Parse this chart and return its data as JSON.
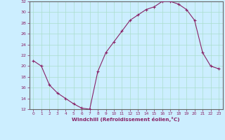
{
  "x": [
    0,
    1,
    2,
    3,
    4,
    5,
    6,
    7,
    8,
    9,
    10,
    11,
    12,
    13,
    14,
    15,
    16,
    17,
    18,
    19,
    20,
    21,
    22,
    23
  ],
  "y": [
    21,
    20,
    16.5,
    15,
    14,
    13,
    12.2,
    12,
    19,
    22.5,
    24.5,
    26.5,
    28.5,
    29.5,
    30.5,
    31,
    32,
    32,
    31.5,
    30.5,
    28.5,
    22.5,
    20,
    19.5
  ],
  "line_color": "#882266",
  "marker": "+",
  "marker_color": "#882266",
  "bg_color": "#cceeff",
  "grid_color": "#aaddcc",
  "axis_color": "#555555",
  "tick_color": "#882266",
  "label_color": "#882266",
  "xlabel": "Windchill (Refroidissement éolien,°C)",
  "ylim": [
    12,
    32
  ],
  "yticks": [
    12,
    14,
    16,
    18,
    20,
    22,
    24,
    26,
    28,
    30,
    32
  ],
  "xlim": [
    -0.5,
    23.5
  ],
  "xticks": [
    0,
    1,
    2,
    3,
    4,
    5,
    6,
    7,
    8,
    9,
    10,
    11,
    12,
    13,
    14,
    15,
    16,
    17,
    18,
    19,
    20,
    21,
    22,
    23
  ]
}
